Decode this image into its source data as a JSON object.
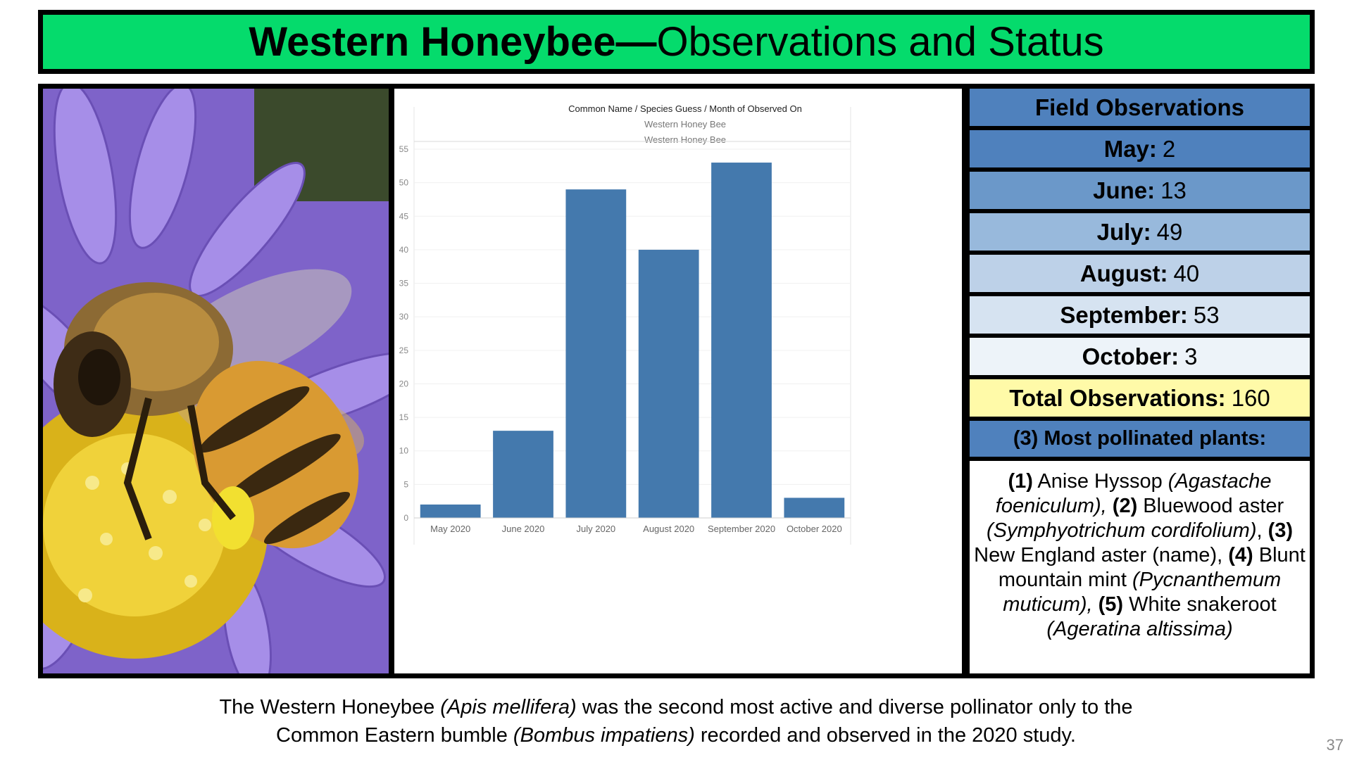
{
  "slide": {
    "title_bold": "Western Honeybee—",
    "title_rest": "Observations and Status",
    "page_number": "37"
  },
  "photo": {
    "subject": "honeybee-on-purple-aster"
  },
  "chart_data": {
    "type": "bar",
    "header": "Common Name / Species Guess / Month of Observed On",
    "subheaders": [
      "Western Honey Bee",
      "Western Honey Bee"
    ],
    "categories": [
      "May 2020",
      "June 2020",
      "July 2020",
      "August 2020",
      "September 2020",
      "October 2020"
    ],
    "values": [
      2,
      13,
      49,
      40,
      53,
      3
    ],
    "ylim": [
      0,
      55
    ],
    "yticks": [
      0,
      5,
      10,
      15,
      20,
      25,
      30,
      35,
      40,
      45,
      50,
      55
    ],
    "bar_color": "#4479ad",
    "grid": true,
    "title": "",
    "xlabel": "",
    "ylabel": ""
  },
  "observations": {
    "header": "Field Observations",
    "months": [
      {
        "label": "May:",
        "value": "2",
        "color": "#4f81bd"
      },
      {
        "label": "June:",
        "value": "13",
        "color": "#6b98c9"
      },
      {
        "label": "July:",
        "value": "49",
        "color": "#98b9dc"
      },
      {
        "label": "August:",
        "value": "40",
        "color": "#bdd1e8"
      },
      {
        "label": "September:",
        "value": "53",
        "color": "#d6e3f1"
      },
      {
        "label": "October:",
        "value": "3",
        "color": "#edf3f9"
      }
    ],
    "total_label": "Total Observations:",
    "total_value": "160",
    "total_color": "#fffaa8",
    "header_color": "#4f81bd",
    "plants_header": "(3) Most pollinated plants:",
    "plants": {
      "n1": "(1)",
      "p1": " Anise Hyssop ",
      "s1": "(Agastache foeniculum),",
      "n2": " (2)",
      "p2": " Bluewood aster ",
      "s2": "(Symphyotrichum cordifolium)",
      "c2": ", ",
      "n3": "(3)",
      "p3": " New England aster (name), ",
      "n4": "(4)",
      "p4": " Blunt mountain mint ",
      "s4": "(Pycnanthemum muticum),",
      "n5": " (5)",
      "p5": " White snakeroot ",
      "s5": "(Ageratina altissima)"
    }
  },
  "caption": {
    "l1a": "The Western Honeybee ",
    "l1b": "(Apis mellifera)",
    "l1c": " was the second most active and diverse pollinator only to the",
    "l2a": "Common Eastern bumble ",
    "l2b": "(Bombus impatiens)",
    "l2c": " recorded and observed in the 2020 study."
  }
}
